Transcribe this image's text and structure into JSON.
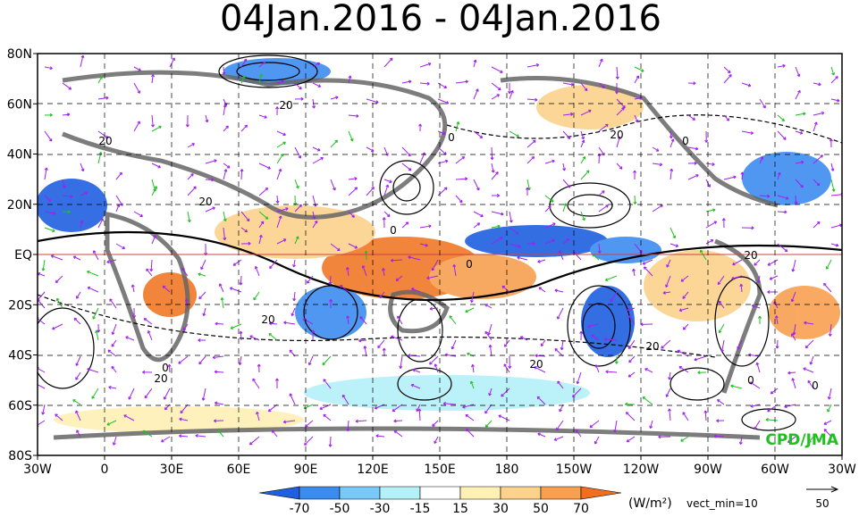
{
  "header": {
    "title": "04Jan.2016 - 04Jan.2016"
  },
  "latitude_labels": [
    "80N",
    "60N",
    "40N",
    "20N",
    "EQ",
    "20S",
    "40S",
    "60S",
    "80S"
  ],
  "longitude_labels": [
    "30W",
    "0",
    "30E",
    "60E",
    "90E",
    "120E",
    "150E",
    "180",
    "150W",
    "120W",
    "90W",
    "60W",
    "30W"
  ],
  "colorbar": {
    "labels": [
      "-70",
      "-50",
      "-30",
      "-15",
      "15",
      "30",
      "50",
      "70"
    ],
    "units": "(W/m²)"
  },
  "vector_note": "vect_min=10",
  "reference_vector": "50",
  "credit": "CPD/JMA",
  "contour_labels": [
    "20",
    "20",
    "20",
    "0",
    "0",
    "20",
    "0",
    "20",
    "0",
    "20",
    "20",
    "0",
    "0",
    "20",
    "0",
    "20"
  ]
}
